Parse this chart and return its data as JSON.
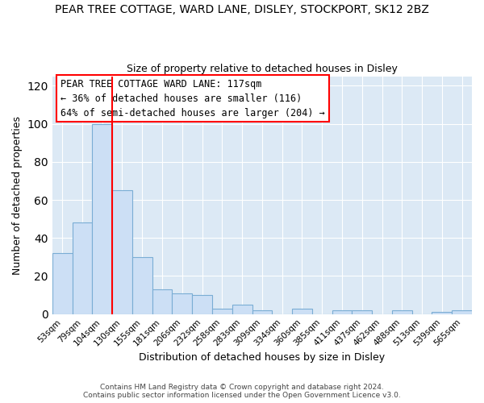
{
  "title": "PEAR TREE COTTAGE, WARD LANE, DISLEY, STOCKPORT, SK12 2BZ",
  "subtitle": "Size of property relative to detached houses in Disley",
  "xlabel": "Distribution of detached houses by size in Disley",
  "ylabel": "Number of detached properties",
  "bin_labels": [
    "53sqm",
    "79sqm",
    "104sqm",
    "130sqm",
    "155sqm",
    "181sqm",
    "206sqm",
    "232sqm",
    "258sqm",
    "283sqm",
    "309sqm",
    "334sqm",
    "360sqm",
    "385sqm",
    "411sqm",
    "437sqm",
    "462sqm",
    "488sqm",
    "513sqm",
    "539sqm",
    "565sqm"
  ],
  "bar_values": [
    32,
    48,
    100,
    65,
    30,
    13,
    11,
    10,
    3,
    5,
    2,
    0,
    3,
    0,
    2,
    2,
    0,
    2,
    0,
    1,
    2
  ],
  "bar_color": "#ccdff5",
  "bar_edge_color": "#7aadd4",
  "vline_x": 3,
  "vline_color": "red",
  "ylim": [
    0,
    125
  ],
  "yticks": [
    0,
    20,
    40,
    60,
    80,
    100,
    120
  ],
  "annotation_title": "PEAR TREE COTTAGE WARD LANE: 117sqm",
  "annotation_line1": "← 36% of detached houses are smaller (116)",
  "annotation_line2": "64% of semi-detached houses are larger (204) →",
  "footer1": "Contains HM Land Registry data © Crown copyright and database right 2024.",
  "footer2": "Contains public sector information licensed under the Open Government Licence v3.0.",
  "background_color": "#ffffff",
  "axes_background_color": "#dce9f5"
}
